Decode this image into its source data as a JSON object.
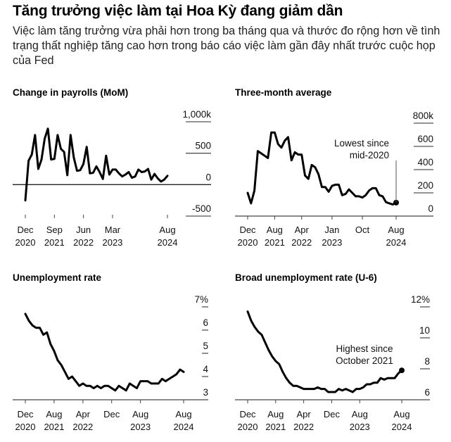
{
  "header": {
    "title": "Tăng trưởng việc làm tại Hoa Kỳ đang giảm dần",
    "subtitle": "Việc làm tăng trưởng vừa phải hơn trong ba tháng qua và thước đo rộng hơn về tình trạng thất nghiệp tăng cao hơn trong báo cáo việc làm gần đây nhất trước cuộc họp của Fed"
  },
  "colors": {
    "line": "#000000",
    "grid": "#555555",
    "text": "#111111",
    "background": "#ffffff"
  },
  "chart_data": [
    {
      "id": "payrolls",
      "type": "line",
      "title": "Change in payrolls (MoM)",
      "x_start": "Dec 2020",
      "x_end": "Aug 2024",
      "x_unit": "month",
      "ylim": [
        -500,
        1000
      ],
      "yticks": [
        {
          "value": 1000,
          "label": "1,000k"
        },
        {
          "value": 500,
          "label": "500"
        },
        {
          "value": 0,
          "label": "0"
        },
        {
          "value": -500,
          "label": "-500"
        }
      ],
      "xticks": [
        {
          "index": 0,
          "line1": "Dec",
          "line2": "2020"
        },
        {
          "index": 9,
          "line1": "Sep",
          "line2": "2021"
        },
        {
          "index": 18,
          "line1": "Jun",
          "line2": "2022"
        },
        {
          "index": 27,
          "line1": "Mar",
          "line2": "2023"
        },
        {
          "index": 44,
          "line1": "Aug",
          "line2": "2024"
        }
      ],
      "grid": "horizontal",
      "zero_line": true,
      "legend": "none",
      "series": [
        {
          "name": "Change in payrolls (thousands)",
          "values": [
            -250,
            380,
            480,
            790,
            250,
            400,
            730,
            890,
            400,
            410,
            790,
            570,
            520,
            150,
            790,
            430,
            220,
            230,
            330,
            600,
            180,
            190,
            290,
            200,
            90,
            460,
            160,
            240,
            240,
            180,
            130,
            160,
            200,
            110,
            130,
            240,
            200,
            210,
            250,
            80,
            170,
            100,
            50,
            80,
            140
          ]
        }
      ]
    },
    {
      "id": "three_month_average",
      "type": "line",
      "title": "Three-month average",
      "x_start": "Dec 2020",
      "x_end": "Aug 2024",
      "x_unit": "month",
      "ylim": [
        0,
        800
      ],
      "yticks": [
        {
          "value": 800,
          "label": "800k"
        },
        {
          "value": 600,
          "label": "600"
        },
        {
          "value": 400,
          "label": "400"
        },
        {
          "value": 200,
          "label": "200"
        },
        {
          "value": 0,
          "label": "0"
        }
      ],
      "xticks": [
        {
          "index": 0,
          "line1": "Dec",
          "line2": "2020"
        },
        {
          "index": 8,
          "line1": "Aug",
          "line2": "2021"
        },
        {
          "index": 16,
          "line1": "Apr",
          "line2": "2022"
        },
        {
          "index": 25,
          "line1": "Jan",
          "line2": "2023"
        },
        {
          "index": 34,
          "line1": "Oct",
          "line2": ""
        },
        {
          "index": 44,
          "line1": "Aug",
          "line2": "2024"
        }
      ],
      "grid": "horizontal",
      "legend": "none",
      "annotation": {
        "text_line1": "Lowest since",
        "text_line2": "mid-2020",
        "index": 44,
        "value": 116
      },
      "series": [
        {
          "name": "Three-month average (thousands)",
          "values": [
            200,
            110,
            220,
            560,
            540,
            520,
            500,
            720,
            720,
            620,
            590,
            650,
            680,
            480,
            550,
            530,
            530,
            350,
            320,
            440,
            420,
            360,
            250,
            250,
            210,
            260,
            270,
            270,
            180,
            190,
            230,
            200,
            170,
            170,
            160,
            180,
            220,
            240,
            240,
            180,
            170,
            120,
            110,
            100,
            116
          ]
        }
      ]
    },
    {
      "id": "unemployment_rate",
      "type": "line",
      "title": "Unemployment rate",
      "x_start": "Dec 2020",
      "x_end": "Aug 2024",
      "x_unit": "month",
      "ylim": [
        2.7,
        7
      ],
      "yticks": [
        {
          "value": 7,
          "label": "7%"
        },
        {
          "value": 6,
          "label": "6"
        },
        {
          "value": 5,
          "label": "5"
        },
        {
          "value": 4,
          "label": "4"
        },
        {
          "value": 3,
          "label": "3"
        }
      ],
      "xticks": [
        {
          "index": 0,
          "line1": "Dec",
          "line2": "2020"
        },
        {
          "index": 8,
          "line1": "Aug",
          "line2": "2021"
        },
        {
          "index": 16,
          "line1": "Apr",
          "line2": "2022"
        },
        {
          "index": 24,
          "line1": "Dec",
          "line2": ""
        },
        {
          "index": 32,
          "line1": "Aug",
          "line2": "2023"
        },
        {
          "index": 44,
          "line1": "Aug",
          "line2": "2024"
        }
      ],
      "grid": "horizontal",
      "legend": "none",
      "series": [
        {
          "name": "Unemployment rate (%)",
          "values": [
            6.7,
            6.4,
            6.2,
            6.1,
            6.1,
            5.8,
            5.9,
            5.4,
            5.1,
            4.7,
            4.5,
            4.2,
            3.9,
            4.0,
            3.8,
            3.6,
            3.7,
            3.6,
            3.6,
            3.5,
            3.6,
            3.5,
            3.6,
            3.6,
            3.5,
            3.4,
            3.6,
            3.5,
            3.4,
            3.7,
            3.6,
            3.5,
            3.8,
            3.8,
            3.8,
            3.7,
            3.7,
            3.7,
            3.9,
            3.8,
            3.9,
            4.0,
            4.1,
            4.3,
            4.2
          ]
        }
      ]
    },
    {
      "id": "broad_unemployment_u6",
      "type": "line",
      "title": "Broad unemployment rate (U-6)",
      "x_start": "Dec 2020",
      "x_end": "Aug 2024",
      "x_unit": "month",
      "ylim": [
        5.8,
        12
      ],
      "yticks": [
        {
          "value": 12,
          "label": "12%"
        },
        {
          "value": 10,
          "label": "10"
        },
        {
          "value": 8,
          "label": "8"
        },
        {
          "value": 6,
          "label": "6"
        }
      ],
      "xticks": [
        {
          "index": 0,
          "line1": "Dec",
          "line2": "2020"
        },
        {
          "index": 8,
          "line1": "Aug",
          "line2": "2021"
        },
        {
          "index": 16,
          "line1": "Apr",
          "line2": "2022"
        },
        {
          "index": 24,
          "line1": "Dec",
          "line2": ""
        },
        {
          "index": 32,
          "line1": "Aug",
          "line2": "2023"
        },
        {
          "index": 44,
          "line1": "Aug",
          "line2": "2024"
        }
      ],
      "grid": "horizontal",
      "legend": "none",
      "annotation": {
        "text_line1": "Highest since",
        "text_line2": "October 2021",
        "index": 44,
        "value": 7.9
      },
      "series": [
        {
          "name": "U-6 rate (%)",
          "values": [
            11.7,
            11.1,
            10.7,
            10.4,
            10.2,
            9.7,
            9.2,
            8.8,
            8.5,
            8.3,
            7.8,
            7.4,
            7.1,
            6.9,
            6.9,
            6.8,
            6.7,
            6.7,
            6.7,
            6.7,
            6.8,
            6.7,
            6.7,
            6.5,
            6.5,
            6.5,
            6.7,
            6.6,
            6.7,
            6.6,
            6.5,
            6.7,
            6.7,
            6.8,
            7.0,
            7.0,
            7.1,
            7.1,
            7.4,
            7.3,
            7.4,
            7.4,
            7.4,
            7.7,
            7.9
          ]
        }
      ]
    }
  ]
}
